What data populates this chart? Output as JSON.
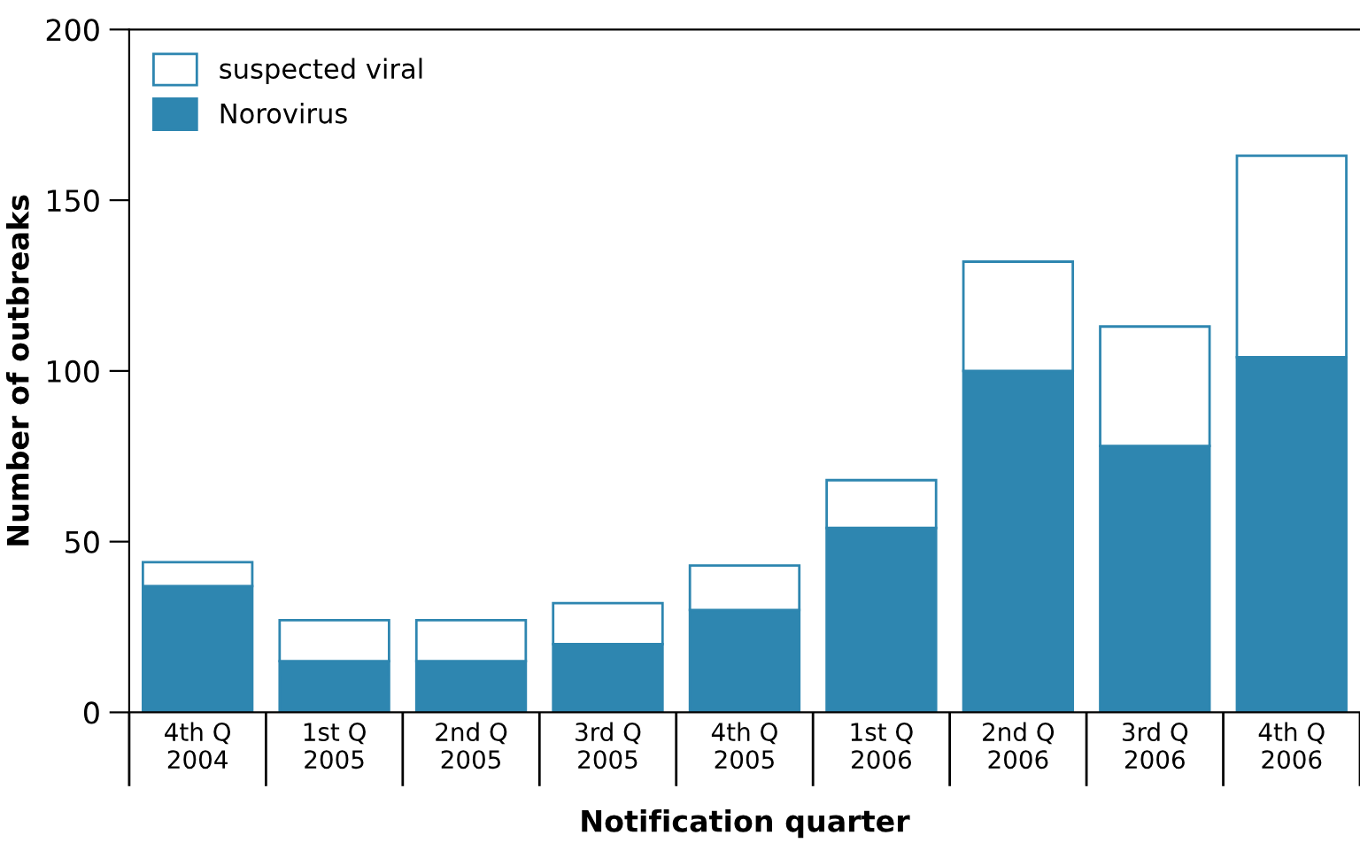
{
  "chart_data": {
    "type": "bar",
    "stacked": true,
    "xlabel": "Notification quarter",
    "ylabel": "Number of outbreaks",
    "categories": [
      "4th Q\n2004",
      "1st Q\n2005",
      "2nd Q\n2005",
      "3rd Q\n2005",
      "4th Q\n2005",
      "1st Q\n2006",
      "2nd Q\n2006",
      "3rd Q\n2006",
      "4th Q\n2006"
    ],
    "series": [
      {
        "name": "Norovirus",
        "color": "#2e86b0",
        "values": [
          37,
          15,
          15,
          20,
          30,
          54,
          100,
          78,
          104
        ]
      },
      {
        "name": "suspected viral",
        "color": "#ffffff",
        "values": [
          7,
          12,
          12,
          12,
          13,
          14,
          32,
          35,
          59
        ]
      }
    ],
    "ylim": [
      0,
      200
    ],
    "yticks": [
      0,
      50,
      100,
      150,
      200
    ],
    "grid": false,
    "legend": "top left"
  }
}
